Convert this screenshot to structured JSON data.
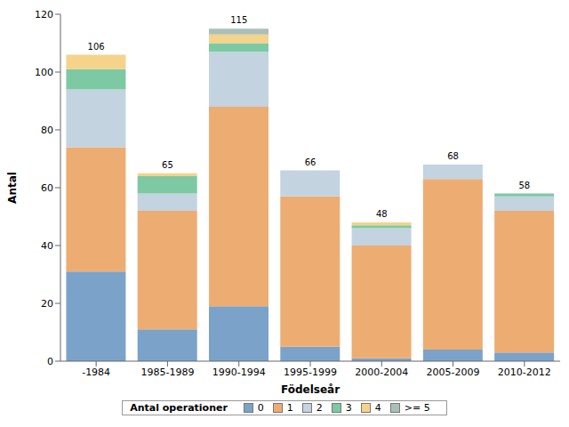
{
  "chart_data": {
    "type": "bar",
    "stacked": true,
    "legend": "bottom",
    "legend_title": "Antal operationer",
    "x_label": "Födelseår",
    "y_label": "Antal",
    "categories": [
      "-1984",
      "1985-1989",
      "1990-1994",
      "1995-1999",
      "2000-2004",
      "2005-2009",
      "2010-2012"
    ],
    "series": [
      {
        "name": "0",
        "color": "#7ba3c9",
        "values": [
          31,
          11,
          19,
          5,
          1,
          4,
          3
        ]
      },
      {
        "name": "1",
        "color": "#edad72",
        "values": [
          43,
          41,
          69,
          52,
          39,
          59,
          49
        ]
      },
      {
        "name": "2",
        "color": "#c3d3e0",
        "values": [
          20,
          6,
          19,
          9,
          6,
          5,
          5
        ]
      },
      {
        "name": "3",
        "color": "#7dc9a4",
        "values": [
          7,
          6,
          3,
          0,
          1,
          0,
          1
        ]
      },
      {
        "name": "4",
        "color": "#f5d38a",
        "values": [
          5,
          1,
          3,
          0,
          1,
          0,
          0
        ]
      },
      {
        "name": ">= 5",
        "color": "#a9bfb8",
        "values": [
          0,
          0,
          2,
          0,
          0,
          0,
          0
        ]
      }
    ],
    "totals": [
      106,
      65,
      115,
      66,
      48,
      68,
      58
    ],
    "ylim": [
      0,
      120
    ],
    "yticks": [
      0,
      20,
      40,
      60,
      80,
      100,
      120
    ]
  }
}
